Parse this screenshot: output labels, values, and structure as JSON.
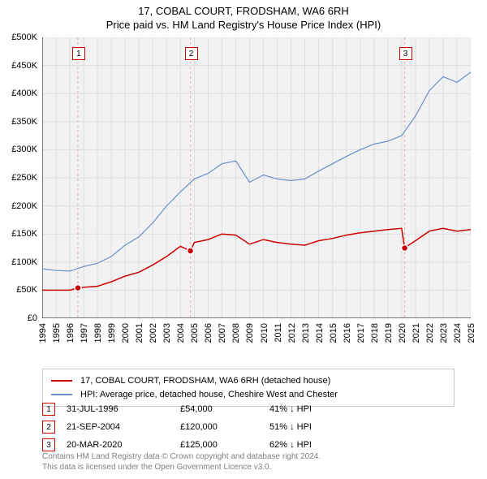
{
  "title_line1": "17, COBAL COURT, FRODSHAM, WA6 6RH",
  "title_line2": "Price paid vs. HM Land Registry's House Price Index (HPI)",
  "chart": {
    "type": "line",
    "background_color": "#ffffff",
    "plot_background_color": "#f2f2f3",
    "grid_color": "#dedee1",
    "axis_color": "#000000",
    "x": {
      "min": 1994,
      "max": 2025,
      "tick_step": 1,
      "labels_rotated": true
    },
    "y": {
      "min": 0,
      "max": 500000,
      "tick_step": 50000,
      "tick_prefix": "£",
      "tick_suffix": "K",
      "label_fontsize": 11,
      "labels": [
        "£0",
        "£50K",
        "£100K",
        "£150K",
        "£200K",
        "£250K",
        "£300K",
        "£350K",
        "£400K",
        "£450K",
        "£500K"
      ]
    },
    "series": [
      {
        "name": "17, COBAL COURT, FRODSHAM, WA6 6RH (detached house)",
        "color": "#cc0000",
        "line_width": 1.5,
        "data": [
          {
            "x": 1994,
            "y": 50000
          },
          {
            "x": 1995,
            "y": 50000
          },
          {
            "x": 1996,
            "y": 50000
          },
          {
            "x": 1996.58,
            "y": 54000
          },
          {
            "x": 1997,
            "y": 55000
          },
          {
            "x": 1998,
            "y": 57000
          },
          {
            "x": 1999,
            "y": 65000
          },
          {
            "x": 2000,
            "y": 75000
          },
          {
            "x": 2001,
            "y": 82000
          },
          {
            "x": 2002,
            "y": 95000
          },
          {
            "x": 2003,
            "y": 110000
          },
          {
            "x": 2004,
            "y": 128000
          },
          {
            "x": 2004.72,
            "y": 120000
          },
          {
            "x": 2005,
            "y": 135000
          },
          {
            "x": 2006,
            "y": 140000
          },
          {
            "x": 2007,
            "y": 150000
          },
          {
            "x": 2008,
            "y": 148000
          },
          {
            "x": 2009,
            "y": 132000
          },
          {
            "x": 2010,
            "y": 140000
          },
          {
            "x": 2011,
            "y": 135000
          },
          {
            "x": 2012,
            "y": 132000
          },
          {
            "x": 2013,
            "y": 130000
          },
          {
            "x": 2014,
            "y": 138000
          },
          {
            "x": 2015,
            "y": 142000
          },
          {
            "x": 2016,
            "y": 148000
          },
          {
            "x": 2017,
            "y": 152000
          },
          {
            "x": 2018,
            "y": 155000
          },
          {
            "x": 2019,
            "y": 158000
          },
          {
            "x": 2020,
            "y": 160000
          },
          {
            "x": 2020.22,
            "y": 125000
          },
          {
            "x": 2020.5,
            "y": 130000
          },
          {
            "x": 2021,
            "y": 138000
          },
          {
            "x": 2022,
            "y": 155000
          },
          {
            "x": 2023,
            "y": 160000
          },
          {
            "x": 2024,
            "y": 155000
          },
          {
            "x": 2025,
            "y": 158000
          }
        ]
      },
      {
        "name": "HPI: Average price, detached house, Cheshire West and Chester",
        "color": "#6a8fc7",
        "line_width": 1.2,
        "data": [
          {
            "x": 1994,
            "y": 88000
          },
          {
            "x": 1995,
            "y": 85000
          },
          {
            "x": 1996,
            "y": 84000
          },
          {
            "x": 1997,
            "y": 92000
          },
          {
            "x": 1998,
            "y": 98000
          },
          {
            "x": 1999,
            "y": 110000
          },
          {
            "x": 2000,
            "y": 130000
          },
          {
            "x": 2001,
            "y": 145000
          },
          {
            "x": 2002,
            "y": 170000
          },
          {
            "x": 2003,
            "y": 200000
          },
          {
            "x": 2004,
            "y": 225000
          },
          {
            "x": 2005,
            "y": 248000
          },
          {
            "x": 2006,
            "y": 258000
          },
          {
            "x": 2007,
            "y": 275000
          },
          {
            "x": 2008,
            "y": 280000
          },
          {
            "x": 2009,
            "y": 242000
          },
          {
            "x": 2010,
            "y": 255000
          },
          {
            "x": 2011,
            "y": 248000
          },
          {
            "x": 2012,
            "y": 245000
          },
          {
            "x": 2013,
            "y": 248000
          },
          {
            "x": 2014,
            "y": 262000
          },
          {
            "x": 2015,
            "y": 275000
          },
          {
            "x": 2016,
            "y": 288000
          },
          {
            "x": 2017,
            "y": 300000
          },
          {
            "x": 2018,
            "y": 310000
          },
          {
            "x": 2019,
            "y": 315000
          },
          {
            "x": 2020,
            "y": 325000
          },
          {
            "x": 2021,
            "y": 360000
          },
          {
            "x": 2022,
            "y": 405000
          },
          {
            "x": 2023,
            "y": 430000
          },
          {
            "x": 2024,
            "y": 420000
          },
          {
            "x": 2025,
            "y": 438000
          }
        ]
      }
    ],
    "event_markers": [
      {
        "n": "1",
        "x": 1996.58,
        "y": 54000,
        "line_color": "#e8aaaa"
      },
      {
        "n": "2",
        "x": 2004.72,
        "y": 120000,
        "line_color": "#e8aaaa"
      },
      {
        "n": "3",
        "x": 2020.22,
        "y": 125000,
        "line_color": "#e8aaaa"
      }
    ],
    "marker_style": {
      "shape": "circle",
      "fill": "#cc0000",
      "stroke": "#ffffff",
      "radius": 4
    },
    "label_top_y": 12
  },
  "legend": {
    "rows": [
      {
        "color": "#cc0000",
        "label": "17, COBAL COURT, FRODSHAM, WA6 6RH (detached house)"
      },
      {
        "color": "#6a8fc7",
        "label": "HPI: Average price, detached house, Cheshire West and Chester"
      }
    ]
  },
  "events_table": [
    {
      "n": "1",
      "date": "31-JUL-1996",
      "price": "£54,000",
      "pct": "41% ↓ HPI"
    },
    {
      "n": "2",
      "date": "21-SEP-2004",
      "price": "£120,000",
      "pct": "51% ↓ HPI"
    },
    {
      "n": "3",
      "date": "20-MAR-2020",
      "price": "£125,000",
      "pct": "62% ↓ HPI"
    }
  ],
  "footer_line1": "Contains HM Land Registry data © Crown copyright and database right 2024.",
  "footer_line2": "This data is licensed under the Open Government Licence v3.0.",
  "colors": {
    "marker_border": "#cc0000",
    "footer_text": "#808080"
  }
}
